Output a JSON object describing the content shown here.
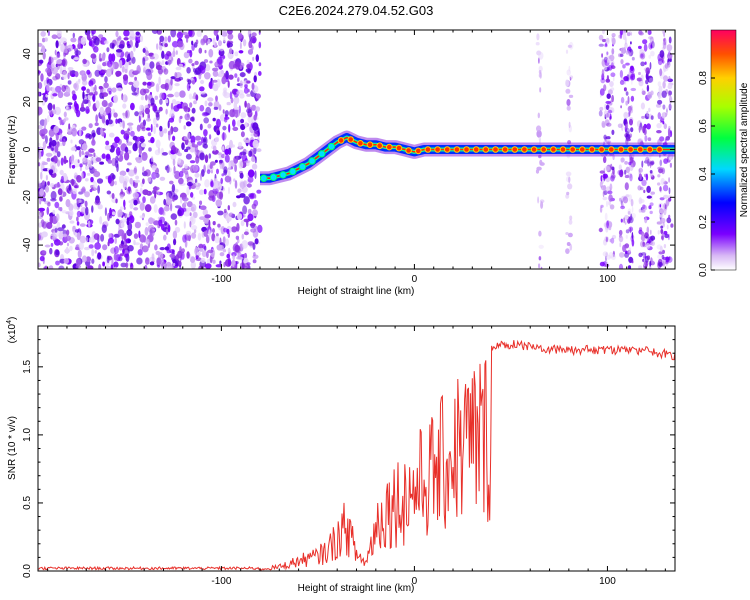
{
  "title": "C2E6.2024.279.04.52.G03",
  "chart_data": [
    {
      "type": "heatmap",
      "name": "spectrogram",
      "xlabel": "Height of straight line (km)",
      "ylabel": "Frequency (Hz)",
      "xlim": [
        -195,
        135
      ],
      "ylim": [
        -50,
        50
      ],
      "x_ticks": [
        -100,
        0,
        100
      ],
      "x_tick_labels": [
        "-100",
        "0",
        "100"
      ],
      "y_ticks": [
        -40,
        -20,
        0,
        20,
        40
      ],
      "y_tick_labels": [
        "-40",
        "-20",
        "0",
        "20",
        "40"
      ],
      "noise_region_x": [
        -195,
        -80
      ],
      "signal_track": {
        "x": [
          -80,
          -75,
          -70,
          -65,
          -60,
          -55,
          -50,
          -45,
          -40,
          -35,
          -30,
          -25,
          -20,
          -15,
          -10,
          -5,
          0,
          5,
          10,
          20,
          40,
          60,
          80,
          100,
          120,
          135
        ],
        "y": [
          -12,
          -12,
          -11,
          -10,
          -8,
          -6,
          -3,
          0,
          3,
          5,
          3,
          2,
          2,
          1,
          1,
          0,
          -1,
          0,
          0,
          0,
          0,
          0,
          0,
          0,
          0,
          0
        ]
      },
      "bursts_x": [
        65,
        80,
        100,
        110,
        120,
        130
      ],
      "colorbar": {
        "label": "Normalized spectral amplitude",
        "ticks": [
          0.0,
          0.2,
          0.4,
          0.6,
          0.8
        ],
        "tick_labels": [
          "0.0",
          "0.2",
          "0.4",
          "0.6",
          "0.8"
        ],
        "range": [
          0.0,
          1.0
        ]
      }
    },
    {
      "type": "line",
      "name": "snr",
      "xlabel": "Height of straight line (km)",
      "ylabel": "SNR (10 * v/v)",
      "scale_label": "(x10",
      "scale_exp": "4",
      "scale_suffix": ")",
      "xlim": [
        -195,
        135
      ],
      "ylim": [
        0.0,
        1.8
      ],
      "x_ticks": [
        -100,
        0,
        100
      ],
      "x_tick_labels": [
        "-100",
        "0",
        "100"
      ],
      "y_ticks": [
        0.0,
        0.5,
        1.0,
        1.5
      ],
      "y_tick_labels": [
        "0.0",
        "0.5",
        "1.0",
        "1.5"
      ],
      "color": "#e8302a",
      "envelope_x": [
        -195,
        -80,
        -70,
        -60,
        -50,
        -45,
        -40,
        -35,
        -30,
        -25,
        -20,
        -15,
        -10,
        -5,
        0,
        5,
        10,
        15,
        20,
        25,
        30,
        40,
        50,
        60,
        80,
        100,
        120,
        135
      ],
      "envelope_y": [
        0.02,
        0.02,
        0.05,
        0.12,
        0.18,
        0.25,
        0.4,
        0.55,
        0.2,
        0.1,
        0.55,
        0.75,
        0.85,
        0.9,
        1.0,
        1.1,
        1.2,
        1.3,
        1.45,
        1.55,
        1.6,
        1.68,
        1.7,
        1.68,
        1.66,
        1.66,
        1.65,
        1.62
      ]
    }
  ]
}
